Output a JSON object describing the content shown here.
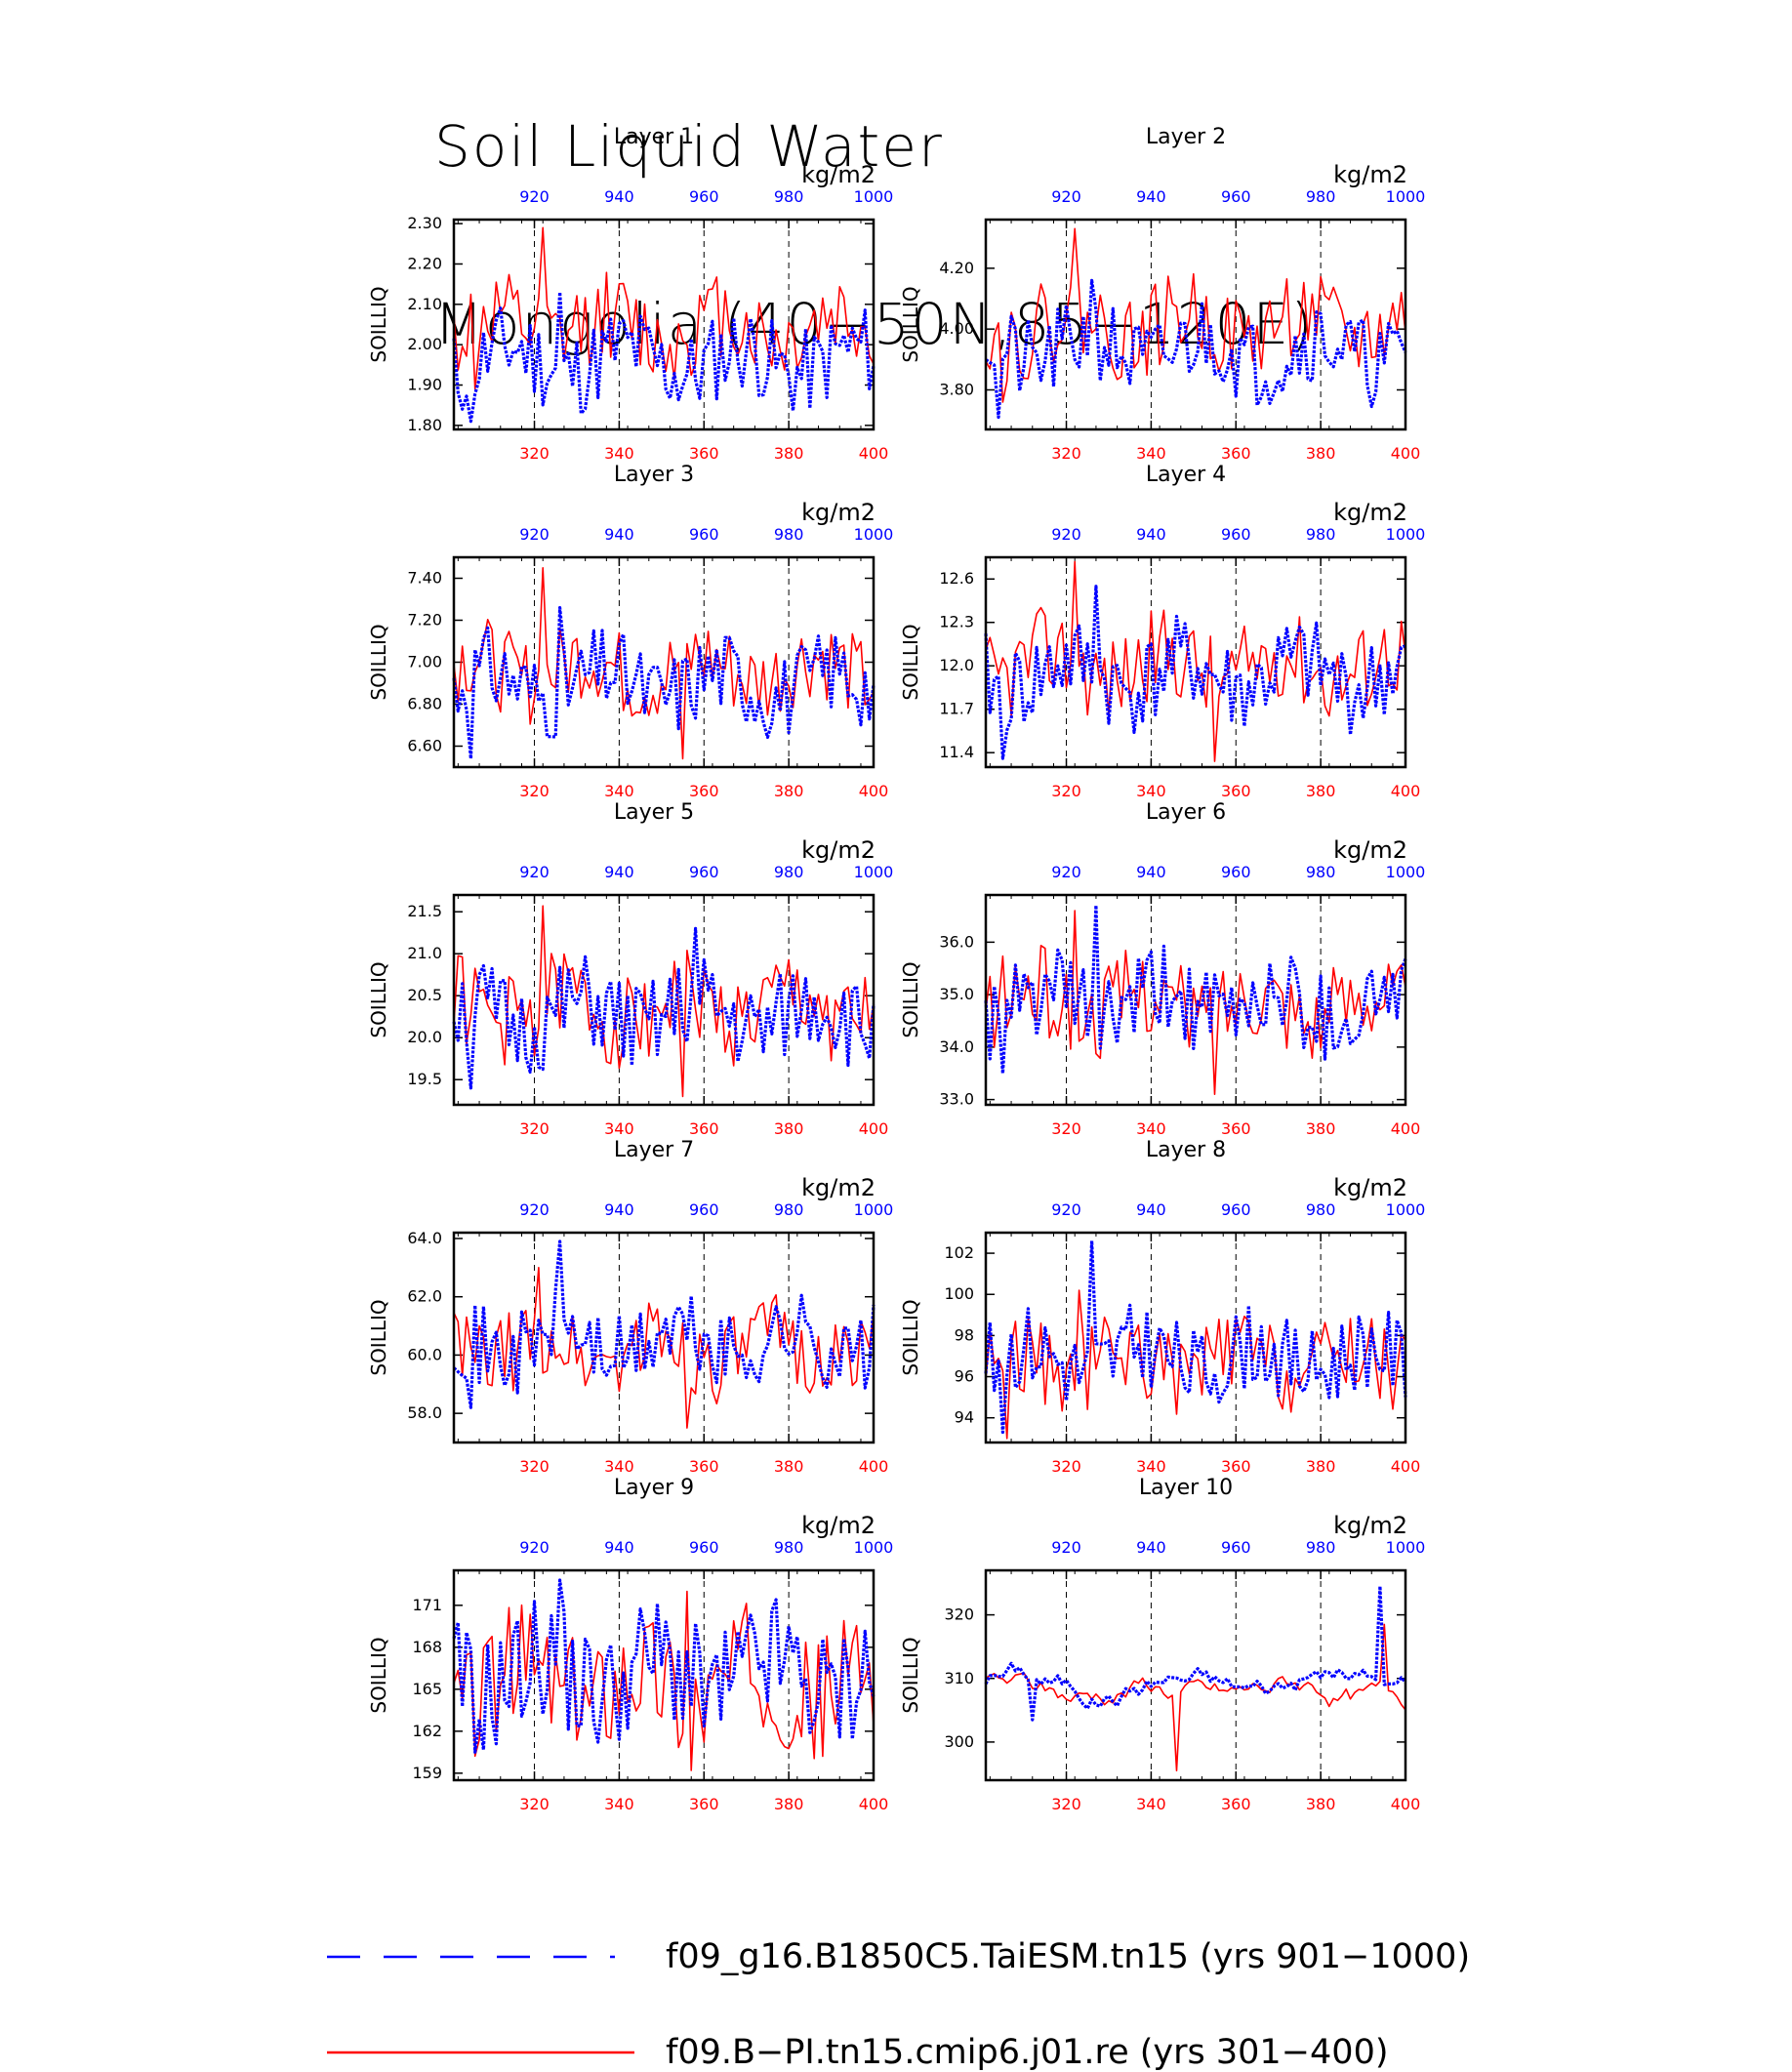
{
  "title_line1": "Soil Liquid Water",
  "title_line2": "Mongolia (40−50N,85−120E)",
  "colors": {
    "model_a": "#0000ff",
    "model_b": "#ff0000",
    "axis": "#000000"
  },
  "legend": [
    {
      "label": "f09_g16.B1850C5.TaiESM.tn15 (yrs 901−1000)",
      "color": "#0000ff",
      "style": "dashed"
    },
    {
      "label": "f09.B−PI.tn15.cmip6.j01.re (yrs 301−400)",
      "color": "#ff0000",
      "style": "solid"
    }
  ],
  "chart_data": [
    {
      "type": "line",
      "title": "Layer 1",
      "ylabel": "SOILLIQ",
      "top_unit": "kg/m2",
      "x_bottom": [
        301,
        400
      ],
      "x_top": [
        901,
        1000
      ],
      "bottom_ticks": [
        "320",
        "340",
        "360",
        "380",
        "400"
      ],
      "top_ticks": [
        "920",
        "940",
        "960",
        "980",
        "1000"
      ],
      "ylim": [
        1.79,
        2.31
      ],
      "yticks": [
        "1.80",
        "1.90",
        "2.00",
        "2.10",
        "2.20",
        "2.30"
      ],
      "series": [
        {
          "name": "f09_g16.B1850C5.TaiESM.tn15 (yrs 901−1000)",
          "color": "#0000ff",
          "mean": 1.96,
          "amp": 0.07,
          "seed": 11,
          "peak_at": 326,
          "peak": 2.13,
          "low_at": 305,
          "low": 1.81
        },
        {
          "name": "f09.B−PI.tn15.cmip6.j01.re (yrs 301−400)",
          "color": "#ff0000",
          "mean": 2.04,
          "amp": 0.07,
          "seed": 12,
          "peak_at": 322,
          "peak": 2.29,
          "low_at": 306,
          "low": 1.89
        }
      ]
    },
    {
      "type": "line",
      "title": "Layer 2",
      "ylabel": "SOILLIQ",
      "top_unit": "kg/m2",
      "x_bottom": [
        301,
        400
      ],
      "x_top": [
        901,
        1000
      ],
      "bottom_ticks": [
        "320",
        "340",
        "360",
        "380",
        "400"
      ],
      "top_ticks": [
        "920",
        "940",
        "960",
        "980",
        "1000"
      ],
      "ylim": [
        3.67,
        4.36
      ],
      "yticks": [
        "3.80",
        "4.00",
        "4.20"
      ],
      "series": [
        {
          "name": "f09_g16.B1850C5.TaiESM.tn15 (yrs 901−1000)",
          "color": "#0000ff",
          "mean": 3.93,
          "amp": 0.09,
          "seed": 21,
          "peak_at": 326,
          "peak": 4.16,
          "low_at": 304,
          "low": 3.71
        },
        {
          "name": "f09.B−PI.tn15.cmip6.j01.re (yrs 301−400)",
          "color": "#ff0000",
          "mean": 4.01,
          "amp": 0.09,
          "seed": 22,
          "peak_at": 322,
          "peak": 4.33,
          "low_at": 305,
          "low": 3.76
        }
      ]
    },
    {
      "type": "line",
      "title": "Layer 3",
      "ylabel": "SOILLIQ",
      "top_unit": "kg/m2",
      "x_bottom": [
        301,
        400
      ],
      "x_top": [
        901,
        1000
      ],
      "bottom_ticks": [
        "320",
        "340",
        "360",
        "380",
        "400"
      ],
      "top_ticks": [
        "920",
        "940",
        "960",
        "980",
        "1000"
      ],
      "ylim": [
        6.5,
        7.5
      ],
      "yticks": [
        "6.60",
        "6.80",
        "7.00",
        "7.20",
        "7.40"
      ],
      "series": [
        {
          "name": "f09_g16.B1850C5.TaiESM.tn15 (yrs 901−1000)",
          "color": "#0000ff",
          "mean": 6.9,
          "amp": 0.13,
          "seed": 31,
          "peak_at": 326,
          "peak": 7.26,
          "low_at": 305,
          "low": 6.54
        },
        {
          "name": "f09.B−PI.tn15.cmip6.j01.re (yrs 301−400)",
          "color": "#ff0000",
          "mean": 6.97,
          "amp": 0.13,
          "seed": 32,
          "peak_at": 322,
          "peak": 7.45,
          "low_at": 355,
          "low": 6.54
        }
      ]
    },
    {
      "type": "line",
      "title": "Layer 4",
      "ylabel": "SOILLIQ",
      "top_unit": "kg/m2",
      "x_bottom": [
        301,
        400
      ],
      "x_top": [
        901,
        1000
      ],
      "bottom_ticks": [
        "320",
        "340",
        "360",
        "380",
        "400"
      ],
      "top_ticks": [
        "920",
        "940",
        "960",
        "980",
        "1000"
      ],
      "ylim": [
        11.3,
        12.75
      ],
      "yticks": [
        "11.4",
        "11.7",
        "12.0",
        "12.3",
        "12.6"
      ],
      "series": [
        {
          "name": "f09_g16.B1850C5.TaiESM.tn15 (yrs 901−1000)",
          "color": "#0000ff",
          "mean": 11.93,
          "amp": 0.2,
          "seed": 41,
          "peak_at": 327,
          "peak": 12.55,
          "low_at": 305,
          "low": 11.36
        },
        {
          "name": "f09.B−PI.tn15.cmip6.j01.re (yrs 301−400)",
          "color": "#ff0000",
          "mean": 12.0,
          "amp": 0.2,
          "seed": 42,
          "peak_at": 322,
          "peak": 12.72,
          "low_at": 355,
          "low": 11.34
        }
      ]
    },
    {
      "type": "line",
      "title": "Layer 5",
      "ylabel": "SOILLIQ",
      "top_unit": "kg/m2",
      "x_bottom": [
        301,
        400
      ],
      "x_top": [
        901,
        1000
      ],
      "bottom_ticks": [
        "320",
        "340",
        "360",
        "380",
        "400"
      ],
      "top_ticks": [
        "920",
        "940",
        "960",
        "980",
        "1000"
      ],
      "ylim": [
        19.2,
        21.7
      ],
      "yticks": [
        "19.5",
        "20.0",
        "20.5",
        "21.0",
        "21.5"
      ],
      "series": [
        {
          "name": "f09_g16.B1850C5.TaiESM.tn15 (yrs 901−1000)",
          "color": "#0000ff",
          "mean": 20.25,
          "amp": 0.35,
          "seed": 51,
          "peak_at": 358,
          "peak": 21.3,
          "low_at": 305,
          "low": 19.4
        },
        {
          "name": "f09.B−PI.tn15.cmip6.j01.re (yrs 301−400)",
          "color": "#ff0000",
          "mean": 20.35,
          "amp": 0.35,
          "seed": 52,
          "peak_at": 322,
          "peak": 21.57,
          "low_at": 355,
          "low": 19.3
        }
      ]
    },
    {
      "type": "line",
      "title": "Layer 6",
      "ylabel": "SOILLIQ",
      "top_unit": "kg/m2",
      "x_bottom": [
        301,
        400
      ],
      "x_top": [
        901,
        1000
      ],
      "bottom_ticks": [
        "320",
        "340",
        "360",
        "380",
        "400"
      ],
      "top_ticks": [
        "920",
        "940",
        "960",
        "980",
        "1000"
      ],
      "ylim": [
        32.9,
        36.9
      ],
      "yticks": [
        "33.0",
        "34.0",
        "35.0",
        "36.0"
      ],
      "series": [
        {
          "name": "f09_g16.B1850C5.TaiESM.tn15 (yrs 901−1000)",
          "color": "#0000ff",
          "mean": 34.8,
          "amp": 0.55,
          "seed": 61,
          "peak_at": 327,
          "peak": 36.7,
          "low_at": 305,
          "low": 33.5
        },
        {
          "name": "f09.B−PI.tn15.cmip6.j01.re (yrs 301−400)",
          "color": "#ff0000",
          "mean": 34.85,
          "amp": 0.55,
          "seed": 62,
          "peak_at": 322,
          "peak": 36.6,
          "low_at": 355,
          "low": 33.1
        }
      ]
    },
    {
      "type": "line",
      "title": "Layer 7",
      "ylabel": "SOILLIQ",
      "top_unit": "kg/m2",
      "x_bottom": [
        301,
        400
      ],
      "x_top": [
        901,
        1000
      ],
      "bottom_ticks": [
        "320",
        "340",
        "360",
        "380",
        "400"
      ],
      "top_ticks": [
        "920",
        "940",
        "960",
        "980",
        "1000"
      ],
      "ylim": [
        57.0,
        64.2
      ],
      "yticks": [
        "58.0",
        "60.0",
        "62.0",
        "64.0"
      ],
      "series": [
        {
          "name": "f09_g16.B1850C5.TaiESM.tn15 (yrs 901−1000)",
          "color": "#0000ff",
          "mean": 60.4,
          "amp": 0.9,
          "seed": 71,
          "peak_at": 326,
          "peak": 63.9,
          "low_at": 305,
          "low": 58.2
        },
        {
          "name": "f09.B−PI.tn15.cmip6.j01.re (yrs 301−400)",
          "color": "#ff0000",
          "mean": 60.2,
          "amp": 0.9,
          "seed": 72,
          "peak_at": 321,
          "peak": 63.0,
          "low_at": 356,
          "low": 57.5
        }
      ]
    },
    {
      "type": "line",
      "title": "Layer 8",
      "ylabel": "SOILLIQ",
      "top_unit": "kg/m2",
      "x_bottom": [
        301,
        400
      ],
      "x_top": [
        901,
        1000
      ],
      "bottom_ticks": [
        "320",
        "340",
        "360",
        "380",
        "400"
      ],
      "top_ticks": [
        "920",
        "940",
        "960",
        "980",
        "1000"
      ],
      "ylim": [
        92.8,
        103.0
      ],
      "yticks": [
        "94",
        "96",
        "98",
        "100",
        "102"
      ],
      "series": [
        {
          "name": "f09_g16.B1850C5.TaiESM.tn15 (yrs 901−1000)",
          "color": "#0000ff",
          "mean": 96.9,
          "amp": 1.3,
          "seed": 81,
          "peak_at": 326,
          "peak": 102.6,
          "low_at": 305,
          "low": 93.3
        },
        {
          "name": "f09.B−PI.tn15.cmip6.j01.re (yrs 301−400)",
          "color": "#ff0000",
          "mean": 96.7,
          "amp": 1.3,
          "seed": 82,
          "peak_at": 323,
          "peak": 100.2,
          "low_at": 306,
          "low": 93.0
        }
      ]
    },
    {
      "type": "line",
      "title": "Layer 9",
      "ylabel": "SOILLIQ",
      "top_unit": "kg/m2",
      "x_bottom": [
        301,
        400
      ],
      "x_top": [
        901,
        1000
      ],
      "bottom_ticks": [
        "320",
        "340",
        "360",
        "380",
        "400"
      ],
      "top_ticks": [
        "920",
        "940",
        "960",
        "980",
        "1000"
      ],
      "ylim": [
        158.5,
        173.5
      ],
      "yticks": [
        "159",
        "162",
        "165",
        "168",
        "171"
      ],
      "series": [
        {
          "name": "f09_g16.B1850C5.TaiESM.tn15 (yrs 901−1000)",
          "color": "#0000ff",
          "mean": 166.0,
          "amp": 2.8,
          "seed": 91,
          "peak_at": 326,
          "peak": 172.8,
          "low_at": 306,
          "low": 160.5
        },
        {
          "name": "f09.B−PI.tn15.cmip6.j01.re (yrs 301−400)",
          "color": "#ff0000",
          "mean": 165.5,
          "amp": 2.8,
          "seed": 92,
          "peak_at": 356,
          "peak": 172.0,
          "low_at": 357,
          "low": 159.2
        }
      ]
    },
    {
      "type": "line",
      "title": "Layer 10",
      "ylabel": "SOILLIQ",
      "top_unit": "kg/m2",
      "x_bottom": [
        301,
        400
      ],
      "x_top": [
        901,
        1000
      ],
      "bottom_ticks": [
        "320",
        "340",
        "360",
        "380",
        "400"
      ],
      "top_ticks": [
        "920",
        "940",
        "960",
        "980",
        "1000"
      ],
      "ylim": [
        294.0,
        327.0
      ],
      "yticks": [
        "300",
        "310",
        "320"
      ],
      "smooth": true,
      "series": [
        {
          "name": "f09_g16.B1850C5.TaiESM.tn15 (yrs 901−1000)",
          "color": "#0000ff",
          "mean": 309.5,
          "amp": 2.2,
          "seed": 101,
          "peak_at": 394,
          "peak": 324.5,
          "low_at": 312,
          "low": 303.5
        },
        {
          "name": "f09.B−PI.tn15.cmip6.j01.re (yrs 301−400)",
          "color": "#ff0000",
          "mean": 307.5,
          "amp": 2.2,
          "seed": 102,
          "peak_at": 395,
          "peak": 318.5,
          "low_at": 346,
          "low": 295.5
        }
      ]
    }
  ]
}
